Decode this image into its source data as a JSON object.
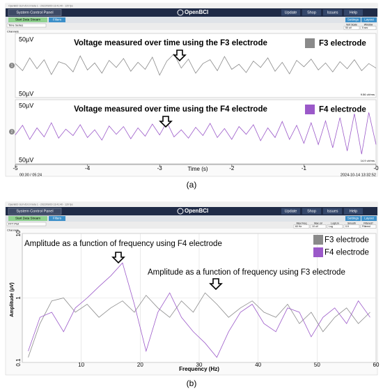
{
  "panel_a": {
    "window_title": "OpenBCI GUI v5.0.9 beta 1 - 2022/09/29 13:41:40 - 120 fps",
    "menu": {
      "system": "System Control Panel",
      "logo": "OpenBCI",
      "buttons": [
        "Update",
        "Shop",
        "Issues",
        "Help"
      ]
    },
    "toolbar": {
      "start": "Start Data Stream",
      "filters": "Filters",
      "settings": "Settings",
      "layout": "Layout"
    },
    "widget": {
      "name": "Time Series",
      "channels": "Channels",
      "controls": [
        {
          "label": "Vert Scale",
          "value": "50 uV"
        },
        {
          "label": "Window",
          "value": "5 sec"
        }
      ]
    },
    "caption": "(a)",
    "chart_data": {
      "type": "line",
      "x_label": "Time (s)",
      "x": [
        -5,
        -4.9,
        -4.8,
        -4.7,
        -4.6,
        -4.5,
        -4.4,
        -4.3,
        -4.2,
        -4.1,
        -4,
        -3.9,
        -3.8,
        -3.7,
        -3.6,
        -3.5,
        -3.4,
        -3.3,
        -3.2,
        -3.1,
        -3,
        -2.9,
        -2.8,
        -2.7,
        -2.6,
        -2.5,
        -2.4,
        -2.3,
        -2.2,
        -2.1,
        -2,
        -1.9,
        -1.8,
        -1.7,
        -1.6,
        -1.5,
        -1.4,
        -1.3,
        -1.2,
        -1.1,
        -1,
        -0.9,
        -0.8,
        -0.7,
        -0.6,
        -0.5,
        -0.4,
        -0.3,
        -0.2,
        -0.1,
        0
      ],
      "xlim": [
        -5,
        0
      ],
      "xticks": [
        -5,
        -4,
        -3,
        -2,
        -1,
        {
          "value": 0,
          "label": "-0"
        }
      ],
      "ylim": [
        -50,
        50
      ],
      "elapsed": "00:30 / 05:24",
      "timestamp": "2024-10-14 13:32:52",
      "series": [
        {
          "name": "F3 electrode",
          "color": "#8a8a8a",
          "number": "1",
          "scale_top": "50µV",
          "scale_bottom": "50µV",
          "rms": "9.56 uVrms",
          "annotation": "Voltage measured over time using the F3 electrode",
          "values": [
            3,
            -8,
            12,
            -5,
            9,
            -14,
            6,
            2,
            -10,
            15,
            -7,
            4,
            -12,
            8,
            -3,
            11,
            -9,
            5,
            -6,
            13,
            -15,
            7,
            18,
            -4,
            10,
            -12,
            3,
            9,
            -8,
            14,
            -6,
            2,
            -11,
            7,
            -3,
            12,
            -9,
            5,
            -13,
            8,
            -2,
            10,
            -7,
            4,
            -10,
            6,
            -5,
            9,
            -8,
            3,
            -4
          ]
        },
        {
          "name": "F4 electrode",
          "color": "#9b59c9",
          "number": "2",
          "scale_top": "50µV",
          "scale_bottom": "50µV",
          "rms": "14.9 uVrms",
          "annotation": "Voltage measured over time using the F4 electrode",
          "values": [
            -5,
            10,
            -12,
            6,
            -8,
            14,
            -10,
            4,
            -6,
            11,
            -9,
            3,
            -13,
            9,
            -4,
            8,
            -11,
            6,
            -7,
            12,
            -5,
            15,
            -8,
            3,
            -10,
            7,
            -6,
            13,
            -9,
            5,
            -12,
            8,
            -4,
            11,
            -14,
            6,
            -9,
            16,
            -12,
            10,
            -18,
            14,
            -20,
            17,
            -25,
            22,
            -30,
            28,
            -35,
            30,
            -20
          ]
        }
      ]
    }
  },
  "panel_b": {
    "window_title": "OpenBCI GUI v5.0.9 beta 1 - 2022/09/29 13:41:40 - 120 fps",
    "menu": {
      "system": "System Control Panel",
      "logo": "OpenBCI",
      "buttons": [
        "Update",
        "Shop",
        "Issues",
        "Help"
      ]
    },
    "toolbar": {
      "start": "Start Data Stream",
      "filters": "Filters",
      "settings": "Settings",
      "layout": "Layout"
    },
    "widget": {
      "name": "FFT Plot",
      "channels": "Channels",
      "controls": [
        {
          "label": "Max Freq",
          "value": "60 Hz"
        },
        {
          "label": "Max uV",
          "value": "10 uV"
        },
        {
          "label": "Log/Lin",
          "value": "Log"
        },
        {
          "label": "Smooth",
          "value": "0.9"
        },
        {
          "label": "Filtered?",
          "value": "Filtered"
        }
      ]
    },
    "caption": "(b)",
    "chart_data": {
      "type": "line",
      "log_y": true,
      "grid": true,
      "x_label": "Frequency (Hz)",
      "y_label": "Amplitude (µV)",
      "x": [
        1,
        3,
        5,
        7,
        9,
        11,
        13,
        15,
        17,
        19,
        21,
        23,
        25,
        27,
        29,
        31,
        33,
        35,
        37,
        39,
        41,
        43,
        45,
        47,
        49,
        51,
        53,
        55,
        57,
        59
      ],
      "xlim": [
        0,
        60
      ],
      "xticks": [
        10,
        20,
        30,
        40,
        50,
        60
      ],
      "ylim": [
        0.1,
        10
      ],
      "yticks": [
        0.1,
        1,
        10
      ],
      "annotations": [
        "Amplitude as a function of frequency using F4 electrode",
        "Amplitude as a function of frequency using F3 electrode"
      ],
      "series": [
        {
          "name": "F3 electrode",
          "color": "#8a8a8a",
          "values": [
            0.12,
            0.4,
            0.9,
            1.0,
            0.6,
            0.8,
            0.5,
            0.7,
            0.9,
            0.6,
            1.1,
            0.7,
            0.5,
            0.9,
            0.6,
            1.2,
            0.8,
            0.5,
            0.7,
            0.9,
            0.6,
            0.5,
            0.8,
            0.4,
            0.6,
            0.3,
            0.5,
            0.7,
            0.4,
            0.6
          ]
        },
        {
          "name": "F4 electrode",
          "color": "#9b59c9",
          "values": [
            0.15,
            0.5,
            0.6,
            0.3,
            0.7,
            1.0,
            1.5,
            2.2,
            3.5,
            0.8,
            0.15,
            0.6,
            1.2,
            0.5,
            0.3,
            0.2,
            0.12,
            0.3,
            0.6,
            0.8,
            0.4,
            0.3,
            0.7,
            0.6,
            0.25,
            0.5,
            0.7,
            0.4,
            0.9,
            0.5
          ]
        }
      ]
    }
  }
}
